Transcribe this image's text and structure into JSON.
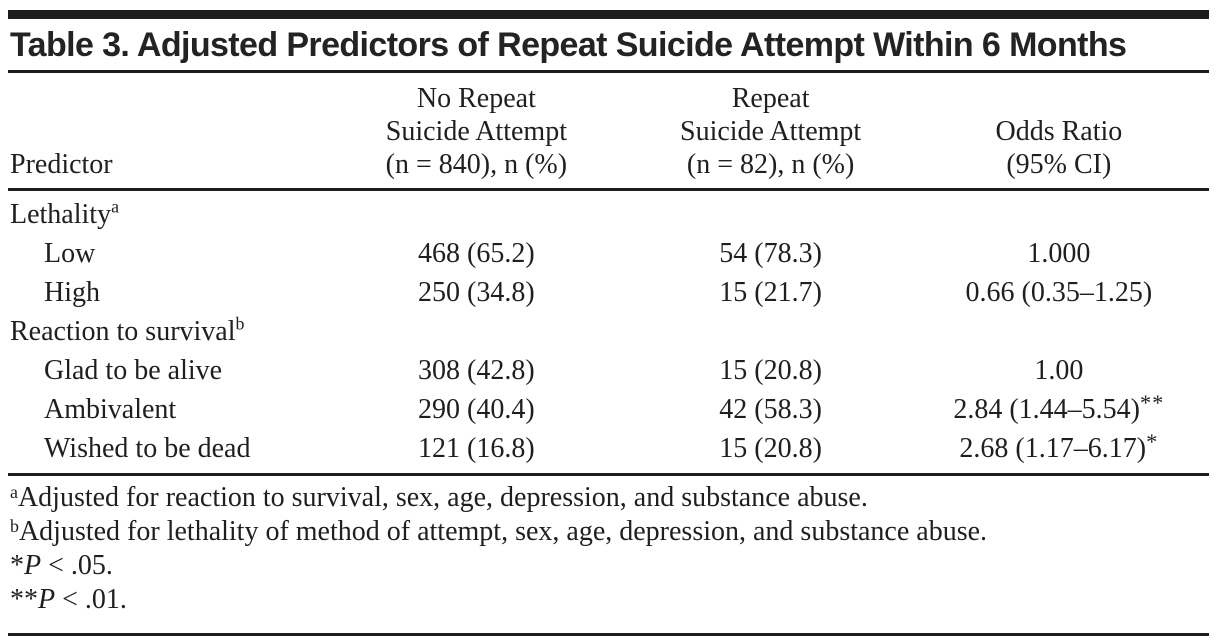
{
  "table": {
    "title": "Table 3. Adjusted Predictors of Repeat Suicide Attempt Within 6 Months",
    "header": {
      "predictor": "Predictor",
      "col_no_repeat": {
        "lines": [
          "No Repeat",
          "Suicide Attempt",
          "(n = 840), n (%)"
        ]
      },
      "col_repeat": {
        "lines": [
          "Repeat",
          "Suicide Attempt",
          "(n = 82), n (%)"
        ]
      },
      "col_odds": {
        "lines": [
          "Odds Ratio",
          "(95% CI)"
        ]
      }
    },
    "rows": [
      {
        "label": "Lethality",
        "sup": "a",
        "no_repeat": "",
        "repeat": "",
        "odds_ratio": "",
        "odds_stars": ""
      },
      {
        "label": "Low",
        "no_repeat": "468 (65.2)",
        "repeat": "54 (78.3)",
        "odds_ratio": "1.000",
        "odds_stars": ""
      },
      {
        "label": "High",
        "no_repeat": "250 (34.8)",
        "repeat": "15 (21.7)",
        "odds_ratio": "0.66 (0.35–1.25)",
        "odds_stars": ""
      },
      {
        "label": "Reaction to survival",
        "sup": "b",
        "no_repeat": "",
        "repeat": "",
        "odds_ratio": "",
        "odds_stars": ""
      },
      {
        "label": "Glad to be alive",
        "no_repeat": "308 (42.8)",
        "repeat": "15 (20.8)",
        "odds_ratio": "1.00",
        "odds_stars": ""
      },
      {
        "label": "Ambivalent",
        "no_repeat": "290 (40.4)",
        "repeat": "42 (58.3)",
        "odds_ratio": "2.84 (1.44–5.54)",
        "odds_stars": "**"
      },
      {
        "label": "Wished to be dead",
        "no_repeat": "121 (16.8)",
        "repeat": "15 (20.8)",
        "odds_ratio": "2.68 (1.17–6.17)",
        "odds_stars": "*"
      }
    ],
    "footnotes": [
      {
        "marker": "a",
        "text": "Adjusted for reaction to survival, sex, age, depression, and substance abuse."
      },
      {
        "marker": "b",
        "text": "Adjusted for lethality of method of attempt, sex, age, depression, and substance abuse."
      },
      {
        "marker": "*",
        "italic": "P",
        "text": " < .05."
      },
      {
        "marker": "**",
        "italic": "P",
        "text": " < .01."
      }
    ]
  }
}
